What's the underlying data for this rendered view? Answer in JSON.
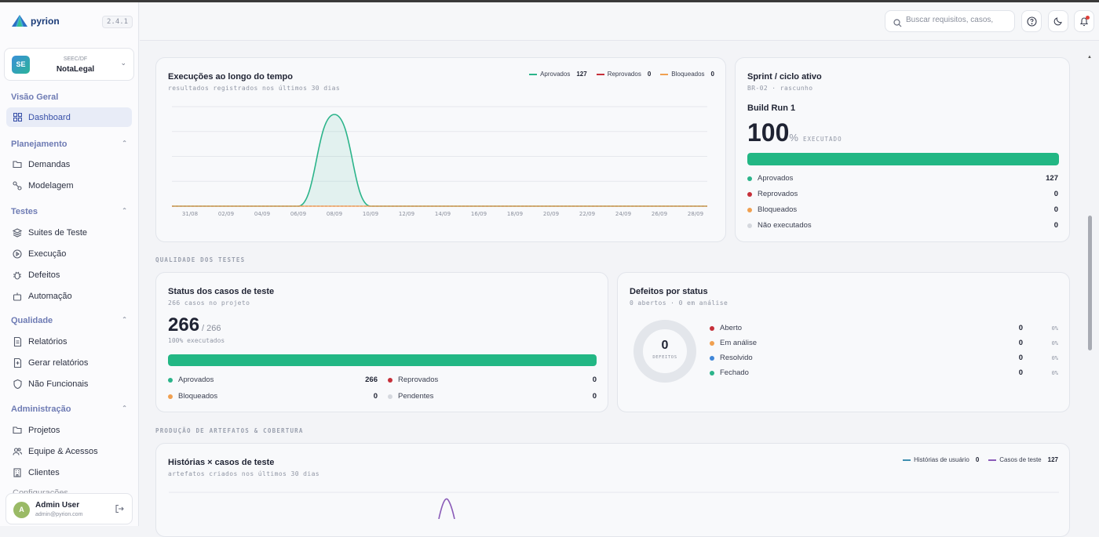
{
  "app": {
    "name": "pyrion",
    "version": "2.4.1"
  },
  "project": {
    "initials": "SE",
    "org": "SEEC/DF",
    "name": "NotaLegal"
  },
  "nav": {
    "overview_label": "Visão Geral",
    "dashboard": "Dashboard",
    "planning": {
      "label": "Planejamento",
      "items": [
        "Demandas",
        "Modelagem"
      ]
    },
    "tests": {
      "label": "Testes",
      "items": [
        "Suites de Teste",
        "Execução",
        "Defeitos",
        "Automação"
      ]
    },
    "quality": {
      "label": "Qualidade",
      "items": [
        "Relatórios",
        "Gerar relatórios",
        "Não Funcionais"
      ]
    },
    "admin": {
      "label": "Administração",
      "items": [
        "Projetos",
        "Equipe & Acessos",
        "Clientes",
        "Configurações"
      ]
    }
  },
  "user": {
    "initial": "A",
    "name": "Admin User",
    "email": "admin@pyrion.com"
  },
  "topbar": {
    "search_placeholder": "Buscar requisitos, casos,"
  },
  "executions": {
    "title": "Execuções ao longo do tempo",
    "subtitle": "resultados registrados nos últimos 30 dias",
    "legend": [
      {
        "label": "Aprovados",
        "value": "127",
        "color": "#2bb48a"
      },
      {
        "label": "Reprovados",
        "value": "0",
        "color": "#c6303a"
      },
      {
        "label": "Bloqueados",
        "value": "0",
        "color": "#f0a050"
      }
    ]
  },
  "sprint": {
    "title": "Sprint / ciclo ativo",
    "subtitle": "BR-02 · rascunho",
    "build": "Build Run 1",
    "percent": "100",
    "percent_sign": "%",
    "executed_label": "EXECUTADO",
    "progress": 1.0,
    "rows": [
      {
        "label": "Aprovados",
        "value": "127",
        "color": "#2bb48a"
      },
      {
        "label": "Reprovados",
        "value": "0",
        "color": "#c6303a"
      },
      {
        "label": "Bloqueados",
        "value": "0",
        "color": "#f0a050"
      },
      {
        "label": "Não executados",
        "value": "0",
        "color": "#d5d8de"
      }
    ]
  },
  "section_quality": "QUALIDADE DOS TESTES",
  "cases_status": {
    "title": "Status dos casos de teste",
    "subtitle": "266 casos no projeto",
    "count": "266",
    "total": "/ 266",
    "executed_text": "100% executados",
    "progress": 1.0,
    "rows": [
      {
        "label": "Aprovados",
        "value": "266",
        "color": "#2bb48a"
      },
      {
        "label": "Reprovados",
        "value": "0",
        "color": "#c6303a"
      },
      {
        "label": "Bloqueados",
        "value": "0",
        "color": "#f0a050"
      },
      {
        "label": "Pendentes",
        "value": "0",
        "color": "#d5d8de"
      }
    ]
  },
  "defects": {
    "title": "Defeitos por status",
    "subtitle": "0 abertos · 0 em análise",
    "donut_value": "0",
    "donut_label": "DEFEITOS",
    "rows": [
      {
        "label": "Aberto",
        "value": "0",
        "pct": "0%",
        "color": "#c6303a"
      },
      {
        "label": "Em análise",
        "value": "0",
        "pct": "0%",
        "color": "#f0a050"
      },
      {
        "label": "Resolvido",
        "value": "0",
        "pct": "0%",
        "color": "#3f86d8"
      },
      {
        "label": "Fechado",
        "value": "0",
        "pct": "0%",
        "color": "#2bb48a"
      }
    ]
  },
  "section_artifacts": "PRODUÇÃO DE ARTEFATOS & COBERTURA",
  "artifacts": {
    "title": "Histórias × casos de teste",
    "subtitle": "artefatos criados nos últimos 30 dias",
    "legend": [
      {
        "label": "Histórias de usuário",
        "value": "0",
        "color": "#3f8fb0"
      },
      {
        "label": "Casos de teste",
        "value": "127",
        "color": "#8a5bb8"
      }
    ]
  },
  "chart_data": [
    {
      "type": "line",
      "title": "Execuções ao longo do tempo",
      "x": [
        "31/08",
        "02/09",
        "04/09",
        "06/09",
        "08/09",
        "10/09",
        "12/09",
        "14/09",
        "16/09",
        "18/09",
        "20/09",
        "22/09",
        "24/09",
        "26/09",
        "28/09"
      ],
      "series": [
        {
          "name": "Aprovados",
          "values": [
            0,
            0,
            0,
            0,
            127,
            0,
            0,
            0,
            0,
            0,
            0,
            0,
            0,
            0,
            0
          ]
        },
        {
          "name": "Reprovados",
          "values": [
            0,
            0,
            0,
            0,
            0,
            0,
            0,
            0,
            0,
            0,
            0,
            0,
            0,
            0,
            0
          ]
        },
        {
          "name": "Bloqueados",
          "values": [
            0,
            0,
            0,
            0,
            0,
            0,
            0,
            0,
            0,
            0,
            0,
            0,
            0,
            0,
            0
          ]
        }
      ],
      "grid": true
    },
    {
      "type": "line",
      "title": "Histórias × casos de teste",
      "series": [
        {
          "name": "Histórias de usuário",
          "total": 0
        },
        {
          "name": "Casos de teste",
          "total": 127
        }
      ]
    }
  ]
}
